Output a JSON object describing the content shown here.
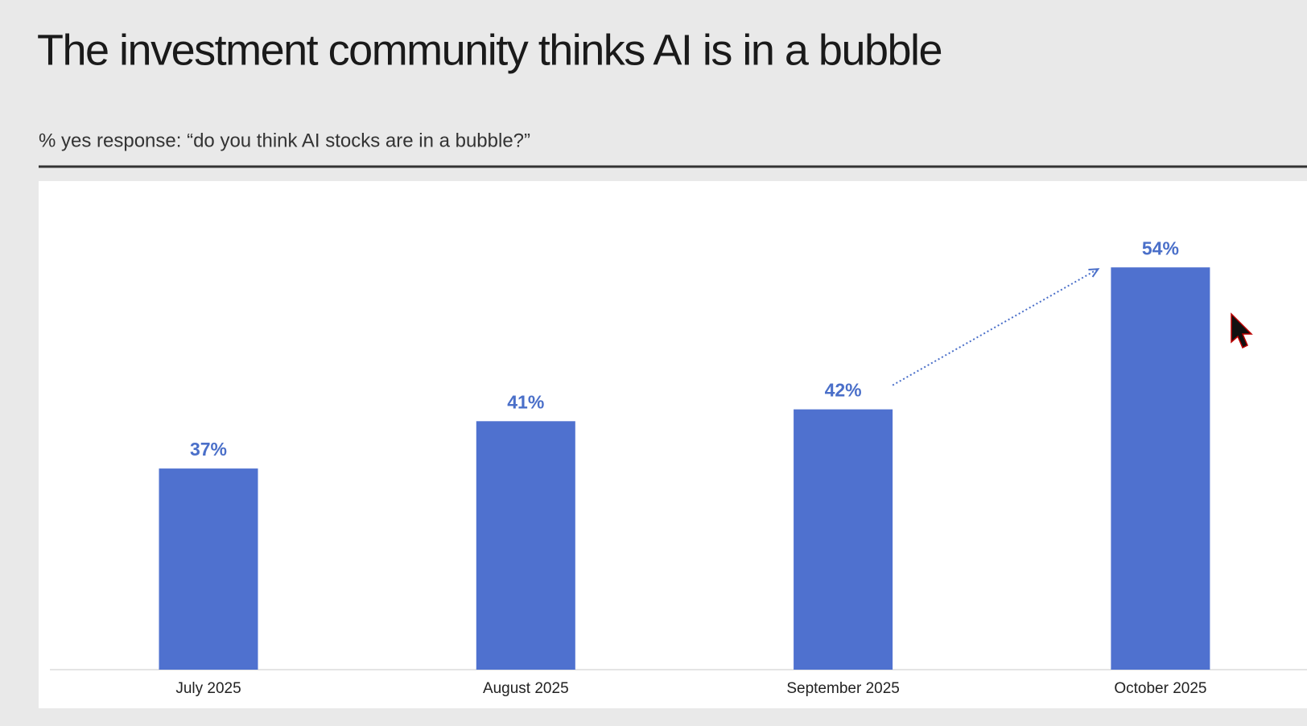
{
  "chart_data": {
    "type": "bar",
    "title": "The investment community thinks AI is in a bubble",
    "subtitle": "% yes response: “do you think AI stocks are in a bubble?”",
    "categories": [
      "July 2025",
      "August 2025",
      "September 2025",
      "October 2025"
    ],
    "values": [
      37,
      41,
      42,
      54
    ],
    "value_labels": [
      "37%",
      "41%",
      "42%",
      "54%"
    ],
    "color": "#4f71cf",
    "ylim": [
      20,
      60
    ]
  }
}
